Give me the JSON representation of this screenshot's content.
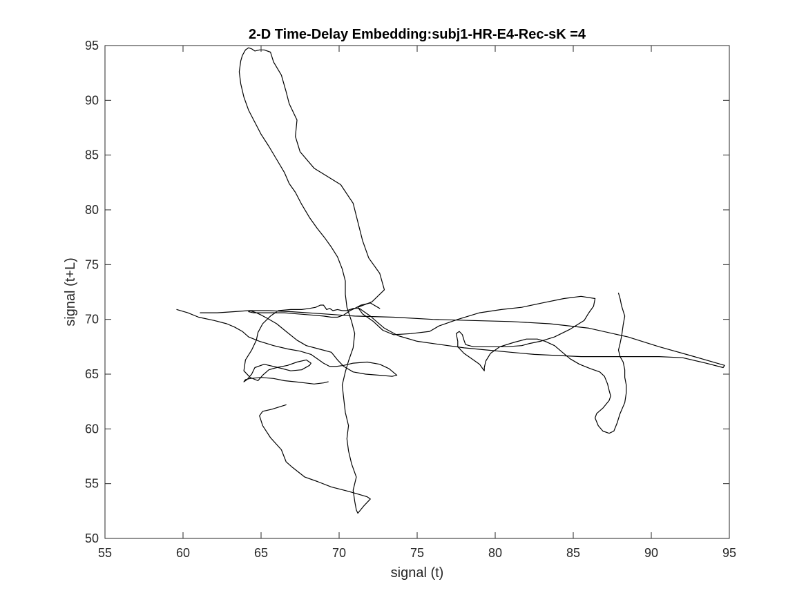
{
  "chart_data": {
    "type": "line",
    "title": "2-D Time-Delay Embedding:subj1-HR-E4-Rec-sK =4",
    "xlabel": "signal (t)",
    "ylabel": "signal (t+L)",
    "xlim": [
      55,
      95
    ],
    "ylim": [
      50,
      95
    ],
    "xticks": [
      55,
      60,
      65,
      70,
      75,
      80,
      85,
      90,
      95
    ],
    "yticks": [
      50,
      55,
      60,
      65,
      70,
      75,
      80,
      85,
      90,
      95
    ],
    "grid": false,
    "line_color": "#000000",
    "series": [
      {
        "x": [
          66.6,
          65.7,
          65.1,
          64.9,
          65.1,
          65.6,
          66.3,
          66.6,
          67.0,
          67.8,
          68.6,
          69.5,
          70.6,
          71.8,
          72.0,
          71.6,
          71.2,
          71.1,
          71.0,
          70.9,
          71.1,
          70.8,
          70.6,
          70.5,
          70.6,
          70.4,
          70.3,
          70.2,
          70.4,
          70.6,
          70.9,
          71.0,
          70.8,
          70.5,
          70.4,
          70.4,
          70.2,
          69.9,
          69.5,
          69.1,
          68.6,
          68.1,
          67.6,
          67.2,
          66.8,
          66.5,
          66.0,
          65.5,
          65.0,
          64.6,
          64.2,
          63.9,
          63.7,
          63.6,
          63.7,
          63.8,
          64.0,
          64.2,
          64.4,
          64.6,
          64.9,
          65.2,
          65.6,
          65.8,
          66.3,
          66.6,
          66.8,
          67.3,
          67.2,
          67.5,
          68.4,
          70.1,
          70.9,
          71.2,
          71.5,
          71.9,
          72.6,
          72.9,
          72.1,
          71.2,
          71.5,
          72.2,
          72.8,
          73.5,
          74.6,
          75.8,
          76.4,
          77.6,
          79.0,
          80.4,
          81.7,
          83.0,
          84.4,
          85.5,
          86.4,
          86.3,
          86.0,
          85.7,
          84.8,
          83.8,
          82.9,
          82.2,
          81.7,
          80.7,
          79.6,
          78.6,
          78.1,
          78.0,
          77.9,
          77.7,
          77.5,
          77.6,
          77.6,
          78.0,
          78.6,
          79.0,
          79.2,
          79.3,
          79.3,
          79.4,
          79.7,
          80.3,
          81.2,
          82.0,
          82.7,
          83.2,
          83.8,
          84.3,
          84.8,
          85.4,
          86.1,
          86.7,
          87.0,
          87.2,
          87.3,
          87.4,
          87.3,
          86.9,
          86.5,
          86.4,
          86.6,
          86.9,
          87.3,
          87.6,
          87.8,
          88.0,
          88.3,
          88.4,
          88.4,
          88.3,
          88.3,
          88.2,
          88.0,
          87.9,
          88.0,
          88.1,
          88.2,
          88.3,
          88.1,
          88.0,
          87.9
        ],
        "y": [
          62.2,
          61.8,
          61.6,
          61.2,
          60.3,
          59.2,
          58.1,
          57.0,
          56.5,
          55.6,
          55.2,
          54.7,
          54.3,
          53.8,
          53.6,
          53.0,
          52.3,
          52.6,
          53.4,
          54.4,
          55.6,
          56.8,
          58.0,
          59.1,
          60.3,
          61.5,
          62.7,
          64.0,
          65.2,
          66.2,
          67.4,
          68.7,
          69.8,
          71.1,
          72.3,
          73.5,
          74.6,
          75.7,
          76.6,
          77.4,
          78.3,
          79.3,
          80.5,
          81.6,
          82.4,
          83.4,
          84.6,
          85.8,
          86.9,
          88.0,
          89.1,
          90.3,
          91.5,
          92.6,
          93.6,
          94.1,
          94.6,
          94.8,
          94.7,
          94.5,
          94.6,
          94.6,
          94.4,
          93.5,
          92.3,
          90.8,
          89.7,
          88.2,
          86.7,
          85.3,
          83.8,
          82.3,
          80.6,
          78.9,
          77.2,
          75.6,
          74.2,
          72.7,
          71.6,
          71.1,
          70.5,
          69.8,
          69.0,
          68.6,
          68.7,
          68.9,
          69.4,
          70.0,
          70.6,
          70.9,
          71.1,
          71.5,
          71.9,
          72.1,
          71.9,
          71.2,
          70.6,
          69.9,
          69.1,
          68.4,
          68.0,
          67.8,
          67.6,
          67.5,
          67.5,
          67.5,
          67.7,
          68.1,
          68.6,
          68.9,
          68.7,
          68.0,
          67.5,
          66.9,
          66.3,
          65.9,
          65.5,
          65.3,
          65.6,
          66.2,
          66.9,
          67.5,
          67.9,
          68.2,
          68.2,
          68.0,
          67.6,
          67.0,
          66.4,
          65.9,
          65.5,
          65.2,
          64.8,
          64.1,
          63.5,
          63.0,
          62.6,
          61.9,
          61.4,
          61.0,
          60.3,
          59.8,
          59.6,
          59.8,
          60.5,
          61.4,
          62.4,
          63.3,
          64.0,
          64.7,
          65.4,
          66.1,
          66.6,
          67.2,
          67.8,
          68.5,
          69.5,
          70.3,
          71.2,
          71.9,
          72.4
        ]
      },
      {
        "x": [
          59.6,
          60.3,
          61.0,
          62.0,
          62.8,
          63.3,
          63.8,
          64.2,
          64.9,
          65.8,
          66.7,
          67.5,
          68.2,
          68.6,
          69.0,
          69.4,
          69.8,
          70.3,
          70.9,
          71.8,
          72.6,
          73.2,
          73.7,
          73.4,
          72.6,
          71.7,
          70.9,
          70.3,
          69.9,
          69.5,
          68.7,
          67.9,
          67.3,
          66.6,
          66.0,
          65.4,
          65.0,
          64.7,
          64.3,
          64.2,
          64.5,
          65.1,
          65.8,
          66.5,
          67.3,
          68.2,
          69.0,
          69.5,
          69.9,
          70.1,
          70.3,
          70.5,
          70.7,
          71.0,
          71.4,
          72.0,
          72.6
        ],
        "y": [
          70.9,
          70.6,
          70.2,
          69.9,
          69.6,
          69.3,
          68.9,
          68.4,
          68.0,
          67.6,
          67.3,
          67.1,
          66.8,
          66.4,
          66.0,
          65.7,
          65.7,
          65.8,
          66.0,
          66.1,
          65.9,
          65.5,
          64.9,
          64.8,
          64.9,
          65.0,
          65.2,
          65.7,
          66.3,
          67.0,
          67.3,
          67.6,
          68.1,
          68.9,
          69.6,
          70.1,
          70.4,
          70.6,
          70.8,
          70.7,
          70.6,
          70.6,
          70.6,
          70.6,
          70.5,
          70.4,
          70.3,
          70.2,
          70.2,
          70.3,
          70.4,
          70.6,
          70.8,
          71.0,
          71.3,
          71.5,
          71.0
        ]
      },
      {
        "x": [
          61.1,
          62.2,
          63.2,
          64.2,
          65.5,
          67.0,
          69.0,
          71.0,
          73.5,
          76.0,
          78.5,
          81.0,
          83.5,
          86.0,
          88.5,
          90.5,
          92.5,
          94.7,
          94.6,
          93.5,
          92.0,
          90.5,
          89.0,
          87.2,
          85.5,
          84.0,
          82.5,
          81.0,
          79.5,
          78.0,
          76.5,
          75.0,
          73.8,
          72.9,
          72.4,
          72.0,
          71.6,
          71.3,
          70.9,
          70.5,
          70.2,
          69.9,
          69.6,
          69.4,
          69.2,
          69.0,
          68.8,
          68.5,
          68.1,
          67.6,
          66.9,
          66.1,
          65.6,
          65.1,
          64.8,
          64.7,
          64.4,
          64.0,
          63.9,
          64.3,
          64.8,
          65.1,
          65.5,
          66.0,
          66.7,
          67.3,
          67.9,
          68.2,
          68.1,
          67.6,
          66.9,
          66.1,
          65.2,
          64.6,
          64.4,
          64.1,
          63.9,
          64.0,
          64.3,
          65.0,
          65.8,
          66.5,
          67.2,
          67.8,
          68.4,
          69.0,
          69.3
        ],
        "y": [
          70.6,
          70.6,
          70.7,
          70.8,
          70.8,
          70.7,
          70.5,
          70.3,
          70.2,
          70.0,
          69.9,
          69.8,
          69.6,
          69.2,
          68.4,
          67.5,
          66.7,
          65.8,
          65.6,
          66.0,
          66.5,
          66.6,
          66.6,
          66.6,
          66.6,
          66.7,
          66.8,
          67.0,
          67.2,
          67.4,
          67.7,
          68.0,
          68.5,
          69.2,
          69.8,
          70.3,
          70.7,
          71.0,
          71.0,
          70.8,
          70.8,
          70.9,
          70.8,
          71.0,
          70.9,
          71.3,
          71.3,
          71.1,
          71.0,
          70.9,
          70.9,
          70.8,
          70.3,
          69.6,
          68.8,
          68.1,
          67.2,
          66.3,
          65.3,
          64.7,
          64.4,
          64.9,
          65.4,
          65.6,
          65.8,
          66.1,
          66.3,
          66.0,
          65.8,
          65.4,
          65.3,
          65.6,
          65.9,
          65.6,
          65.0,
          64.5,
          64.3,
          64.5,
          64.6,
          64.7,
          64.6,
          64.4,
          64.3,
          64.2,
          64.1,
          64.2,
          64.3
        ]
      }
    ]
  }
}
